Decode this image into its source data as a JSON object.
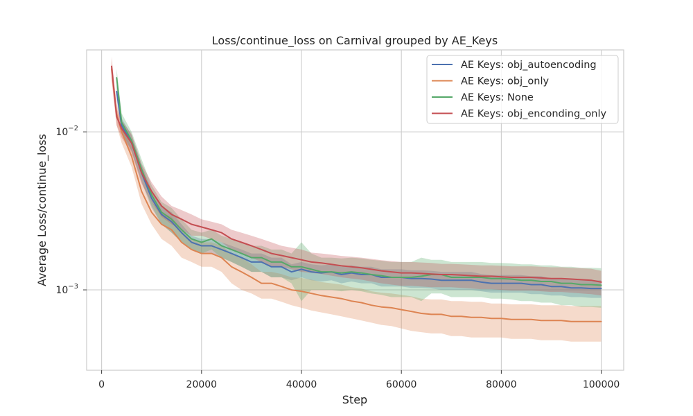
{
  "chart_data": {
    "type": "line",
    "title": "Loss/continue_loss on Carnival grouped by AE_Keys",
    "xlabel": "Step",
    "ylabel": "Average Loss/continue_loss",
    "xlim": [
      -3000,
      104500
    ],
    "ylim": [
      0.00031,
      0.033
    ],
    "yscale": "log",
    "x_ticks": [
      0,
      20000,
      40000,
      60000,
      80000,
      100000
    ],
    "x_tick_labels": [
      "0",
      "20000",
      "40000",
      "60000",
      "80000",
      "100000"
    ],
    "y_ticks": [
      0.001,
      0.01
    ],
    "y_tick_base": "10",
    "y_tick_exponents": [
      "−3",
      "−2"
    ],
    "grid": true,
    "legend_position": "top-right",
    "series": [
      {
        "name": "AE Keys: obj_autoencoding",
        "color": "#4c72b0",
        "x": [
          3000,
          4000,
          6000,
          8000,
          10000,
          12000,
          14000,
          16000,
          18000,
          20000,
          22000,
          24000,
          26000,
          28000,
          30000,
          32000,
          34000,
          36000,
          38000,
          40000,
          42000,
          44000,
          46000,
          48000,
          50000,
          52000,
          54000,
          56000,
          58000,
          60000,
          62000,
          64000,
          66000,
          68000,
          70000,
          72000,
          74000,
          76000,
          78000,
          80000,
          82000,
          84000,
          86000,
          88000,
          90000,
          92000,
          94000,
          96000,
          98000,
          100000
        ],
        "values": [
          0.018,
          0.011,
          0.0085,
          0.0055,
          0.0038,
          0.003,
          0.0027,
          0.0023,
          0.002,
          0.0019,
          0.0019,
          0.0018,
          0.0017,
          0.0016,
          0.0015,
          0.0015,
          0.0014,
          0.0014,
          0.0013,
          0.00135,
          0.0013,
          0.00128,
          0.0013,
          0.00125,
          0.00128,
          0.00125,
          0.00125,
          0.0012,
          0.0012,
          0.0012,
          0.00118,
          0.00118,
          0.00117,
          0.00115,
          0.00115,
          0.00115,
          0.00115,
          0.00112,
          0.0011,
          0.0011,
          0.0011,
          0.0011,
          0.00108,
          0.00108,
          0.00105,
          0.00105,
          0.00103,
          0.00103,
          0.00102,
          0.00102
        ],
        "lower": [
          0.016,
          0.0098,
          0.0075,
          0.0048,
          0.0033,
          0.0026,
          0.0023,
          0.002,
          0.0018,
          0.0017,
          0.0017,
          0.0016,
          0.0015,
          0.0014,
          0.0013,
          0.0013,
          0.0012,
          0.0012,
          0.00115,
          0.0012,
          0.00115,
          0.00113,
          0.00115,
          0.0011,
          0.00113,
          0.0011,
          0.0011,
          0.00105,
          0.00105,
          0.00105,
          0.00103,
          0.00103,
          0.00102,
          0.001,
          0.001,
          0.001,
          0.001,
          0.00098,
          0.00096,
          0.00096,
          0.00096,
          0.00096,
          0.00094,
          0.00094,
          0.00092,
          0.00092,
          0.0009,
          0.0009,
          0.00089,
          0.00089
        ],
        "upper": [
          0.02,
          0.0122,
          0.0095,
          0.0062,
          0.0043,
          0.0034,
          0.0031,
          0.0026,
          0.0022,
          0.0021,
          0.0021,
          0.002,
          0.0019,
          0.0018,
          0.0017,
          0.0017,
          0.0016,
          0.0016,
          0.00145,
          0.0015,
          0.00145,
          0.00143,
          0.00145,
          0.0014,
          0.00143,
          0.0014,
          0.0014,
          0.00135,
          0.00135,
          0.00135,
          0.00133,
          0.00133,
          0.00132,
          0.0013,
          0.0013,
          0.0013,
          0.0013,
          0.00126,
          0.00124,
          0.00124,
          0.00124,
          0.00124,
          0.00122,
          0.00122,
          0.00118,
          0.00118,
          0.00116,
          0.00116,
          0.00115,
          0.00115
        ]
      },
      {
        "name": "AE Keys: obj_only",
        "color": "#dd8452",
        "x": [
          2000,
          3000,
          4000,
          6000,
          8000,
          10000,
          12000,
          14000,
          16000,
          18000,
          20000,
          22000,
          24000,
          26000,
          28000,
          30000,
          32000,
          34000,
          36000,
          38000,
          40000,
          42000,
          44000,
          46000,
          48000,
          50000,
          52000,
          54000,
          56000,
          58000,
          60000,
          62000,
          64000,
          66000,
          68000,
          70000,
          72000,
          74000,
          76000,
          78000,
          80000,
          82000,
          84000,
          86000,
          88000,
          90000,
          92000,
          94000,
          96000,
          98000,
          100000
        ],
        "values": [
          0.025,
          0.013,
          0.01,
          0.007,
          0.0042,
          0.0031,
          0.0026,
          0.0024,
          0.002,
          0.0018,
          0.0017,
          0.0017,
          0.0016,
          0.0014,
          0.0013,
          0.0012,
          0.0011,
          0.0011,
          0.00105,
          0.001,
          0.00098,
          0.00095,
          0.00092,
          0.0009,
          0.00088,
          0.00085,
          0.00083,
          0.0008,
          0.00078,
          0.00077,
          0.00075,
          0.00073,
          0.00071,
          0.0007,
          0.0007,
          0.00068,
          0.00068,
          0.00067,
          0.00067,
          0.00066,
          0.00066,
          0.00065,
          0.00065,
          0.00065,
          0.00064,
          0.00064,
          0.00064,
          0.00063,
          0.00063,
          0.00063,
          0.00063
        ],
        "lower": [
          0.021,
          0.011,
          0.0085,
          0.006,
          0.0035,
          0.0026,
          0.0021,
          0.0019,
          0.0016,
          0.0015,
          0.0014,
          0.0014,
          0.0013,
          0.0011,
          0.001,
          0.00095,
          0.00088,
          0.00088,
          0.00084,
          0.0008,
          0.00077,
          0.00074,
          0.00072,
          0.0007,
          0.00068,
          0.00066,
          0.00064,
          0.00062,
          0.0006,
          0.00059,
          0.00057,
          0.00055,
          0.00054,
          0.00053,
          0.00053,
          0.00051,
          0.00051,
          0.0005,
          0.0005,
          0.0005,
          0.0005,
          0.00049,
          0.00049,
          0.00049,
          0.00048,
          0.00048,
          0.00048,
          0.00047,
          0.00047,
          0.00047,
          0.00047
        ],
        "upper": [
          0.029,
          0.015,
          0.0115,
          0.008,
          0.0049,
          0.0036,
          0.0031,
          0.0029,
          0.0024,
          0.0021,
          0.002,
          0.002,
          0.0019,
          0.0017,
          0.0016,
          0.00145,
          0.0013,
          0.0013,
          0.00126,
          0.0012,
          0.00119,
          0.00116,
          0.00112,
          0.0011,
          0.00108,
          0.00104,
          0.00102,
          0.00098,
          0.00096,
          0.00095,
          0.00093,
          0.00091,
          0.00088,
          0.00087,
          0.00087,
          0.00085,
          0.00085,
          0.00084,
          0.00084,
          0.00082,
          0.00082,
          0.00081,
          0.00081,
          0.00081,
          0.0008,
          0.0008,
          0.0008,
          0.00079,
          0.00079,
          0.00079,
          0.00079
        ]
      },
      {
        "name": "AE Keys: None",
        "color": "#55a868",
        "x": [
          3000,
          4000,
          6000,
          8000,
          10000,
          12000,
          14000,
          16000,
          18000,
          20000,
          22000,
          24000,
          26000,
          28000,
          30000,
          32000,
          34000,
          36000,
          38000,
          40000,
          42000,
          44000,
          46000,
          48000,
          50000,
          52000,
          54000,
          56000,
          58000,
          60000,
          62000,
          64000,
          66000,
          68000,
          70000,
          72000,
          74000,
          76000,
          78000,
          80000,
          82000,
          84000,
          86000,
          88000,
          90000,
          92000,
          94000,
          96000,
          98000,
          100000
        ],
        "values": [
          0.022,
          0.0115,
          0.0088,
          0.0058,
          0.004,
          0.0031,
          0.0028,
          0.0024,
          0.0021,
          0.002,
          0.0021,
          0.0019,
          0.0018,
          0.0017,
          0.0016,
          0.0016,
          0.0015,
          0.0015,
          0.0014,
          0.0014,
          0.00135,
          0.0013,
          0.0013,
          0.00128,
          0.0013,
          0.00128,
          0.00125,
          0.00123,
          0.0012,
          0.0012,
          0.0012,
          0.00122,
          0.00125,
          0.00125,
          0.0012,
          0.0012,
          0.0012,
          0.0012,
          0.00118,
          0.00118,
          0.00117,
          0.00115,
          0.00115,
          0.00113,
          0.00113,
          0.0011,
          0.0011,
          0.00108,
          0.00108,
          0.00107
        ],
        "lower": [
          0.019,
          0.0099,
          0.0076,
          0.0049,
          0.0034,
          0.0026,
          0.0023,
          0.002,
          0.0018,
          0.0017,
          0.0018,
          0.0016,
          0.0015,
          0.0014,
          0.0013,
          0.0013,
          0.0012,
          0.0012,
          0.0011,
          0.00085,
          0.001,
          0.001,
          0.001,
          0.00098,
          0.001,
          0.00098,
          0.00095,
          0.00093,
          0.0009,
          0.0009,
          0.0009,
          0.00085,
          0.00095,
          0.00095,
          0.0009,
          0.0009,
          0.0009,
          0.0009,
          0.00088,
          0.00088,
          0.00087,
          0.00085,
          0.00085,
          0.00083,
          0.00083,
          0.0008,
          0.0008,
          0.00078,
          0.00078,
          0.00077
        ],
        "upper": [
          0.025,
          0.0131,
          0.01,
          0.0067,
          0.0046,
          0.0036,
          0.0033,
          0.0028,
          0.0024,
          0.0023,
          0.0024,
          0.0022,
          0.0021,
          0.002,
          0.0019,
          0.0019,
          0.0018,
          0.0018,
          0.0017,
          0.002,
          0.0017,
          0.0016,
          0.0016,
          0.00158,
          0.0016,
          0.00158,
          0.00155,
          0.00153,
          0.0015,
          0.0015,
          0.0015,
          0.0016,
          0.00155,
          0.00155,
          0.0015,
          0.0015,
          0.0015,
          0.0015,
          0.00148,
          0.00148,
          0.00147,
          0.00145,
          0.00145,
          0.00143,
          0.00143,
          0.0014,
          0.0014,
          0.00138,
          0.00138,
          0.00137
        ]
      },
      {
        "name": "AE Keys: obj_enconding_only",
        "color": "#c44e52",
        "x": [
          2000,
          3000,
          4000,
          6000,
          8000,
          10000,
          12000,
          14000,
          16000,
          18000,
          20000,
          22000,
          24000,
          26000,
          28000,
          30000,
          32000,
          34000,
          36000,
          38000,
          40000,
          42000,
          44000,
          46000,
          48000,
          50000,
          52000,
          54000,
          56000,
          58000,
          60000,
          62000,
          64000,
          66000,
          68000,
          70000,
          72000,
          74000,
          76000,
          78000,
          80000,
          82000,
          84000,
          86000,
          88000,
          90000,
          92000,
          94000,
          96000,
          98000,
          100000
        ],
        "values": [
          0.026,
          0.0125,
          0.0105,
          0.0085,
          0.0055,
          0.0042,
          0.0034,
          0.003,
          0.0028,
          0.0026,
          0.0025,
          0.0024,
          0.0023,
          0.0021,
          0.002,
          0.0019,
          0.0018,
          0.0017,
          0.00165,
          0.0016,
          0.00155,
          0.0015,
          0.00148,
          0.00145,
          0.00142,
          0.0014,
          0.00138,
          0.00135,
          0.00132,
          0.0013,
          0.00128,
          0.00128,
          0.00127,
          0.00126,
          0.00125,
          0.00125,
          0.00124,
          0.00123,
          0.00122,
          0.00122,
          0.00121,
          0.0012,
          0.0012,
          0.0012,
          0.00119,
          0.00118,
          0.00118,
          0.00117,
          0.00116,
          0.00115,
          0.00112
        ],
        "lower": [
          0.022,
          0.011,
          0.0092,
          0.0073,
          0.0047,
          0.0036,
          0.0029,
          0.0026,
          0.0024,
          0.0022,
          0.0022,
          0.0021,
          0.002,
          0.0018,
          0.0017,
          0.0016,
          0.0015,
          0.0014,
          0.0014,
          0.00135,
          0.0013,
          0.00128,
          0.00126,
          0.00123,
          0.0012,
          0.00118,
          0.00116,
          0.00113,
          0.0011,
          0.00108,
          0.00106,
          0.00106,
          0.00105,
          0.00104,
          0.00104,
          0.00104,
          0.00103,
          0.00102,
          0.00101,
          0.00101,
          0.001,
          0.00099,
          0.00099,
          0.00099,
          0.00098,
          0.00097,
          0.00097,
          0.00096,
          0.00095,
          0.00094,
          0.00092
        ],
        "upper": [
          0.03,
          0.014,
          0.0118,
          0.0097,
          0.0063,
          0.0048,
          0.0039,
          0.0034,
          0.0032,
          0.003,
          0.0028,
          0.0027,
          0.0026,
          0.0024,
          0.0023,
          0.0022,
          0.0021,
          0.002,
          0.0019,
          0.00185,
          0.0018,
          0.00172,
          0.0017,
          0.00167,
          0.00164,
          0.00162,
          0.0016,
          0.00157,
          0.00154,
          0.00152,
          0.0015,
          0.0015,
          0.00149,
          0.00148,
          0.00146,
          0.00146,
          0.00145,
          0.00144,
          0.00143,
          0.00143,
          0.00142,
          0.00141,
          0.00141,
          0.00141,
          0.0014,
          0.00139,
          0.00139,
          0.00138,
          0.00137,
          0.00136,
          0.00132
        ]
      }
    ]
  }
}
